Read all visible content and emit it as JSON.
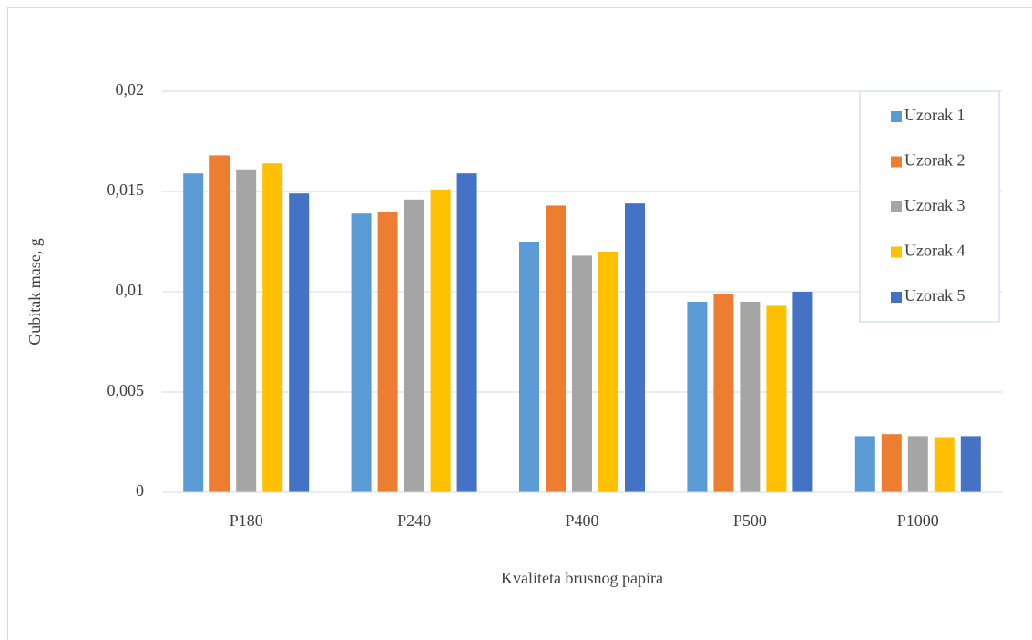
{
  "chart_data": {
    "type": "bar",
    "x_label": "Kvaliteta brusnog papira",
    "y_label": "Gubitak mase, g",
    "categories": [
      "P180",
      "P240",
      "P400",
      "P500",
      "P1000"
    ],
    "series": [
      {
        "name": "Uzorak 1",
        "color": "#5b9bd5",
        "values": [
          0.0159,
          0.0139,
          0.0125,
          0.0095,
          0.0028
        ]
      },
      {
        "name": "Uzorak 2",
        "color": "#ed7d31",
        "values": [
          0.0168,
          0.014,
          0.0143,
          0.0099,
          0.0029
        ]
      },
      {
        "name": "Uzorak 3",
        "color": "#a5a5a5",
        "values": [
          0.0161,
          0.0146,
          0.0118,
          0.0095,
          0.0028
        ]
      },
      {
        "name": "Uzorak 4",
        "color": "#ffc000",
        "values": [
          0.0164,
          0.0151,
          0.012,
          0.0093,
          0.00275
        ]
      },
      {
        "name": "Uzorak 5",
        "color": "#4472c4",
        "values": [
          0.0149,
          0.0159,
          0.0144,
          0.01,
          0.0028
        ]
      }
    ],
    "ylim": [
      0,
      0.02
    ],
    "yticks": [
      0,
      {
        "value": 0.005,
        "label": "0,005"
      },
      {
        "value": 0.01,
        "label": "0,01"
      },
      {
        "value": 0.015,
        "label": "0,015"
      },
      {
        "value": 0.02,
        "label": "0,02"
      }
    ],
    "grid": true,
    "legend": "upper right"
  }
}
